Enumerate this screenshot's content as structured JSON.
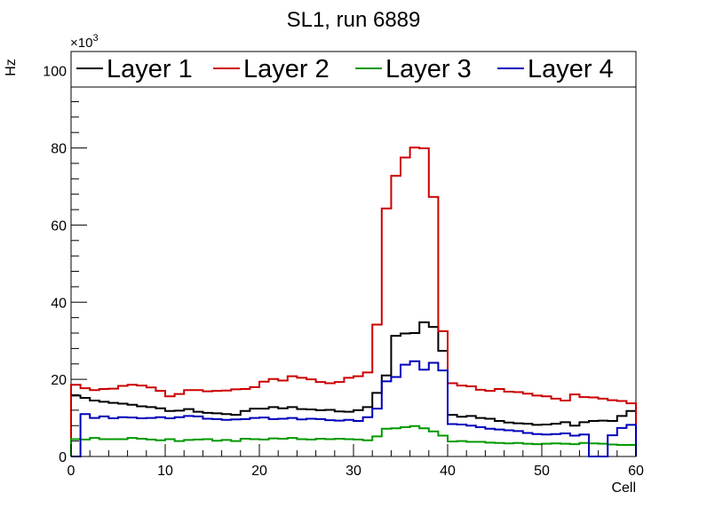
{
  "chart_data": {
    "type": "line",
    "step": true,
    "title": "SL1, run 6889",
    "xlabel": "Cell",
    "ylabel": "Hz",
    "y_multiplier_label": "×10",
    "y_multiplier_exponent": "3",
    "xlim": [
      0,
      60
    ],
    "ylim": [
      0,
      105
    ],
    "x_ticks": [
      0,
      10,
      20,
      30,
      40,
      50,
      60
    ],
    "y_ticks": [
      0,
      20,
      40,
      60,
      80,
      100
    ],
    "bin_width": 1,
    "legend_position": "top",
    "series": [
      {
        "name": "Layer 1",
        "color": "#000000",
        "values": [
          15.8,
          15.2,
          14.5,
          14.2,
          13.9,
          13.7,
          13.4,
          13.0,
          12.8,
          12.5,
          11.8,
          11.9,
          12.3,
          11.6,
          11.3,
          11.2,
          11.0,
          10.8,
          11.8,
          12.4,
          12.4,
          12.8,
          12.5,
          12.8,
          12.3,
          12.2,
          12.0,
          12.1,
          11.7,
          11.6,
          12.0,
          12.8,
          16.5,
          21.0,
          31.3,
          31.9,
          32.0,
          34.8,
          33.6,
          27.4,
          10.8,
          10.3,
          10.5,
          10.0,
          9.8,
          9.2,
          8.8,
          8.6,
          8.5,
          8.2,
          8.3,
          8.5,
          8.9,
          8.0,
          8.9,
          9.2,
          9.3,
          9.2,
          10.5,
          11.8
        ]
      },
      {
        "name": "Layer 2",
        "color": "#cc0000",
        "values": [
          18.6,
          17.7,
          17.2,
          17.5,
          17.6,
          18.3,
          18.6,
          18.4,
          17.9,
          17.0,
          15.6,
          16.2,
          17.2,
          17.2,
          16.9,
          17.0,
          17.1,
          17.4,
          17.5,
          18.0,
          19.4,
          20.1,
          19.7,
          20.8,
          20.4,
          20.0,
          19.3,
          19.0,
          19.3,
          20.4,
          20.8,
          21.8,
          34.2,
          64.3,
          72.8,
          77.5,
          80.1,
          79.9,
          67.3,
          32.5,
          19.0,
          18.4,
          18.2,
          17.3,
          17.0,
          17.5,
          16.8,
          16.7,
          16.3,
          15.8,
          15.6,
          15.0,
          14.5,
          16.1,
          15.4,
          15.3,
          15.0,
          14.6,
          14.4,
          13.8
        ]
      },
      {
        "name": "Layer 3",
        "color": "#009900",
        "values": [
          4.5,
          4.4,
          4.8,
          4.5,
          4.5,
          4.5,
          4.8,
          4.6,
          4.4,
          4.2,
          4.5,
          4.0,
          4.3,
          4.4,
          4.5,
          4.1,
          4.3,
          4.0,
          4.6,
          4.5,
          4.4,
          4.7,
          4.6,
          4.8,
          4.5,
          4.4,
          4.6,
          4.5,
          4.6,
          4.5,
          4.4,
          4.2,
          5.2,
          7.2,
          7.3,
          7.6,
          7.9,
          7.3,
          6.5,
          5.4,
          3.9,
          4.0,
          3.8,
          3.8,
          3.6,
          3.5,
          3.4,
          3.5,
          3.3,
          3.2,
          3.3,
          3.4,
          3.3,
          3.2,
          3.5,
          3.4,
          3.3,
          3.1,
          3.0,
          3.0
        ]
      },
      {
        "name": "Layer 4",
        "color": "#0000bb",
        "values": [
          0,
          11.0,
          10.0,
          10.4,
          9.9,
          10.2,
          10.1,
          9.9,
          10.0,
          10.2,
          9.9,
          10.2,
          10.5,
          10.4,
          9.8,
          9.7,
          9.5,
          9.6,
          9.7,
          10.0,
          10.1,
          9.7,
          9.8,
          10.0,
          9.6,
          9.8,
          9.7,
          9.4,
          9.3,
          9.5,
          9.2,
          10.2,
          12.4,
          19.5,
          20.6,
          23.8,
          24.7,
          22.5,
          24.3,
          22.3,
          8.4,
          8.3,
          8.0,
          7.6,
          7.2,
          7.0,
          6.8,
          6.6,
          6.1,
          5.8,
          5.7,
          5.8,
          6.0,
          5.4,
          5.7,
          0,
          0,
          5.5,
          7.4,
          8.2
        ]
      }
    ]
  }
}
